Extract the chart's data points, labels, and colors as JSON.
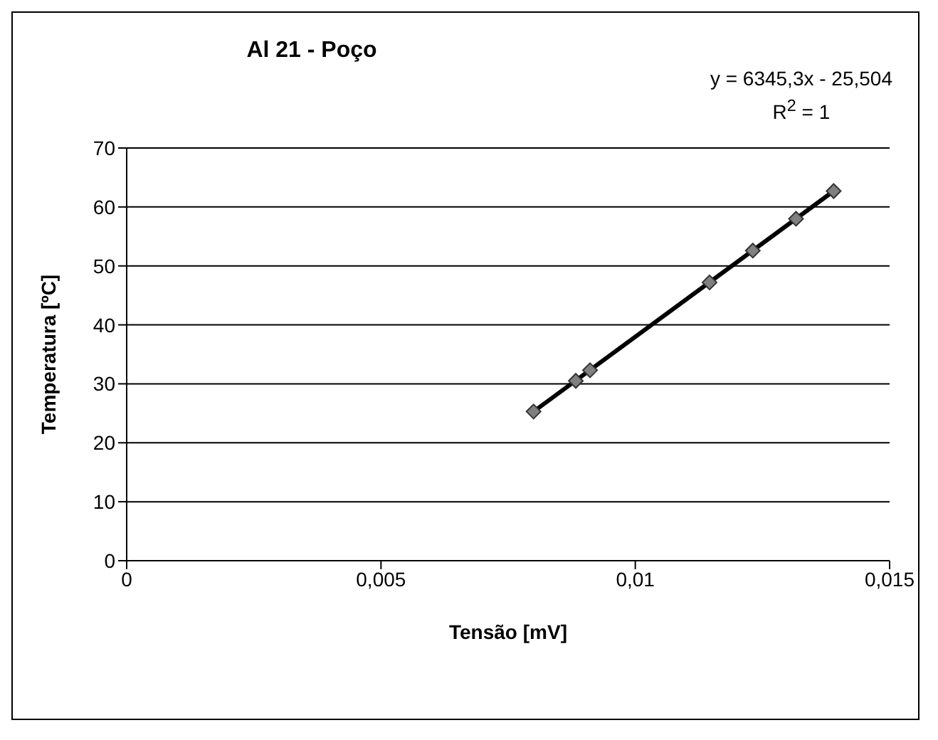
{
  "chart_data": {
    "type": "scatter",
    "title": "Al 21 - Poço",
    "xlabel": "Tensão [mV]",
    "ylabel": "Temperatura [ºC]",
    "annotations": [
      "y = 6345,3x - 25,504",
      "R$^{2}$ = 1"
    ],
    "series": [
      {
        "color": "#808080",
        "marker": "diamond",
        "x": [
          0.008,
          0.00883,
          0.00911,
          0.01146,
          0.01231,
          0.01316,
          0.0139
        ],
        "values": [
          25.3,
          30.5,
          32.3,
          47.2,
          52.6,
          58.0,
          62.7
        ]
      },
      {
        "type": "line",
        "color": "#000000",
        "marker": "none",
        "x": [
          0.008,
          0.0139
        ],
        "values": [
          25.3,
          62.7
        ]
      }
    ],
    "xlim": [
      0,
      0.015
    ],
    "xticks": [
      0,
      {
        "value": 0.005,
        "label": "0,005"
      },
      {
        "value": 0.01,
        "label": "0,01"
      },
      {
        "value": 0.015,
        "label": "0,015"
      }
    ],
    "ylim": [
      0,
      70
    ],
    "yticks": [
      0,
      10,
      20,
      30,
      40,
      50,
      60,
      70
    ],
    "grid": "y"
  }
}
